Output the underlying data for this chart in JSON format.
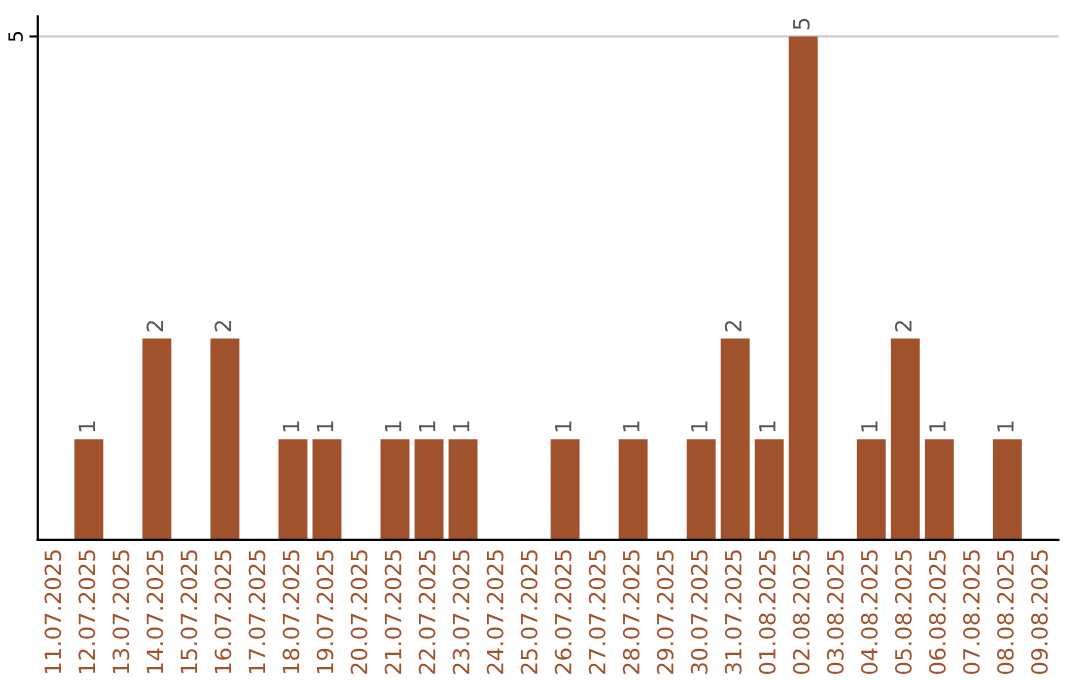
{
  "chart_data": {
    "type": "bar",
    "categories": [
      "11.07.2025",
      "12.07.2025",
      "13.07.2025",
      "14.07.2025",
      "15.07.2025",
      "16.07.2025",
      "17.07.2025",
      "18.07.2025",
      "19.07.2025",
      "20.07.2025",
      "21.07.2025",
      "22.07.2025",
      "23.07.2025",
      "24.07.2025",
      "25.07.2025",
      "26.07.2025",
      "27.07.2025",
      "28.07.2025",
      "29.07.2025",
      "30.07.2025",
      "31.07.2025",
      "01.08.2025",
      "02.08.2025",
      "03.08.2025",
      "04.08.2025",
      "05.08.2025",
      "06.08.2025",
      "07.08.2025",
      "08.08.2025",
      "09.08.2025"
    ],
    "values": [
      0,
      1,
      0,
      2,
      0,
      2,
      0,
      1,
      1,
      0,
      1,
      1,
      1,
      0,
      0,
      1,
      0,
      1,
      0,
      1,
      2,
      1,
      5,
      0,
      1,
      2,
      1,
      0,
      1,
      0
    ],
    "value_labels": [
      null,
      "1",
      null,
      "2",
      null,
      "2",
      null,
      "1",
      "1",
      null,
      "1",
      "1",
      "1",
      null,
      null,
      "1",
      null,
      "1",
      null,
      "1",
      "2",
      "1",
      "5",
      null,
      "1",
      "2",
      "1",
      null,
      "1",
      null
    ],
    "color": "#a0522d",
    "ylim": [
      0,
      5.2
    ],
    "yticks": [
      5
    ],
    "grid": "y"
  }
}
